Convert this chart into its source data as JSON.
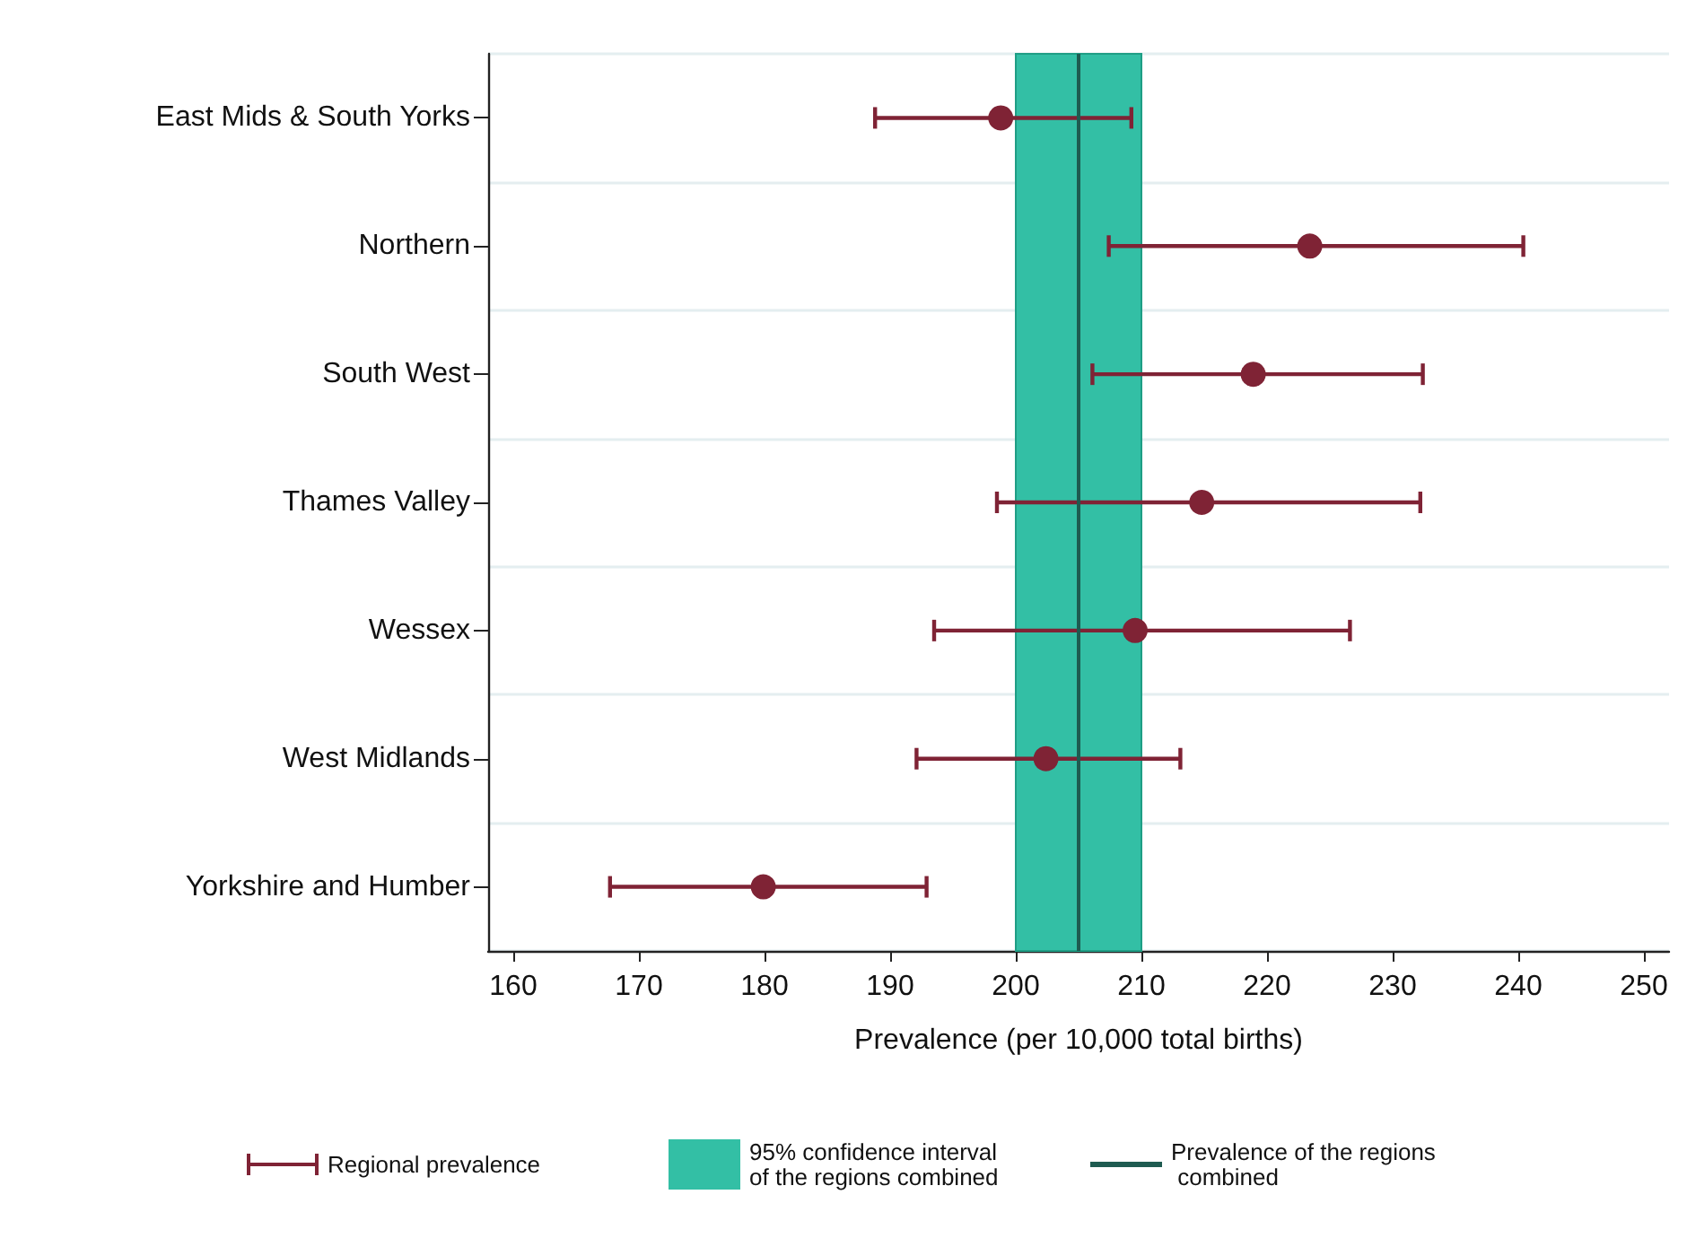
{
  "chart_data": {
    "type": "scatter",
    "xlabel": "Prevalence (per 10,000 total births)",
    "categories": [
      "East Mids & South Yorks",
      "Northern",
      "South West",
      "Thames Valley",
      "Wessex",
      "West Midlands",
      "Yorkshire and Humber"
    ],
    "series": [
      {
        "name": "Regional prevalence",
        "color": "#7f2335",
        "values": [
          198.8,
          223.4,
          218.9,
          214.8,
          209.5,
          202.4,
          179.9
        ],
        "errors": [
          [
            188.8,
            209.2
          ],
          [
            207.4,
            240.4
          ],
          [
            206.1,
            232.4
          ],
          [
            198.5,
            232.2
          ],
          [
            193.5,
            226.6
          ],
          [
            192.1,
            213.1
          ],
          [
            167.7,
            192.9
          ]
        ]
      }
    ],
    "orientation": "horizontal",
    "xlim": [
      158,
      252
    ],
    "xticks": [
      160,
      170,
      180,
      190,
      200,
      210,
      220,
      230,
      240,
      250
    ],
    "ref_lines": [
      {
        "axis": "x",
        "value": 205,
        "label": "Prevalence of the regions combined",
        "color": "#1e5b50"
      }
    ],
    "bands": [
      {
        "axis": "x",
        "from": 200,
        "to": 210,
        "label": "95% confidence interval of the regions combined",
        "color": "#33bfa5"
      }
    ],
    "grid": "y",
    "legend": "bottom",
    "marker": "circle"
  }
}
